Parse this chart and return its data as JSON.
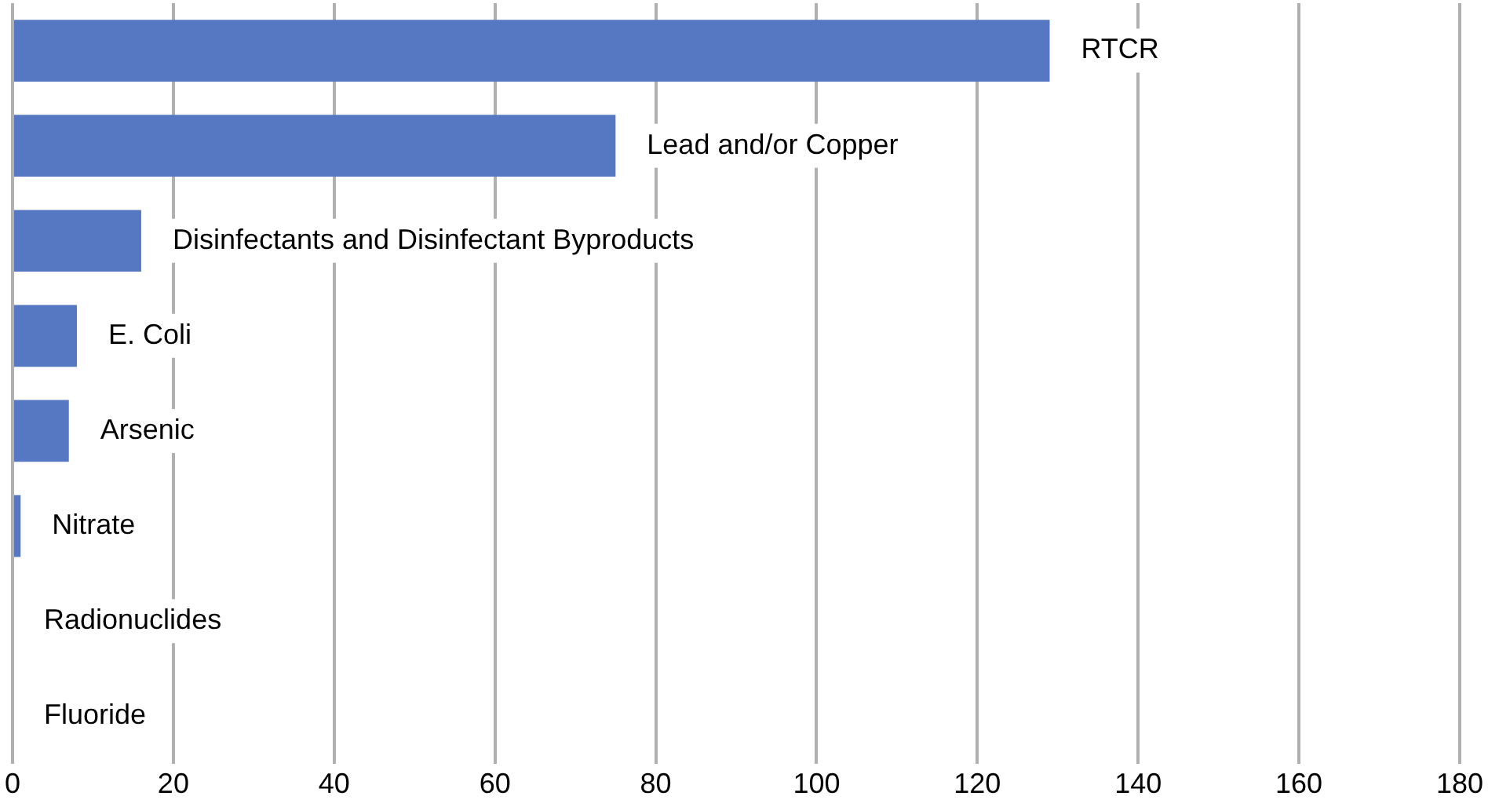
{
  "chart_data": {
    "type": "bar",
    "orientation": "horizontal",
    "categories": [
      "RTCR",
      "Lead and/or Copper",
      "Disinfectants and Disinfectant Byproducts",
      "E. Coli",
      "Arsenic",
      "Nitrate",
      "Radionuclides",
      "Fluoride"
    ],
    "values": [
      129,
      75,
      16,
      8,
      7,
      1,
      0,
      0
    ],
    "color": "#5677c1",
    "xlim": [
      0,
      180
    ],
    "xticks": [
      0,
      20,
      40,
      60,
      80,
      100,
      120,
      140,
      160,
      180
    ],
    "grid": "x",
    "legend": false
  }
}
